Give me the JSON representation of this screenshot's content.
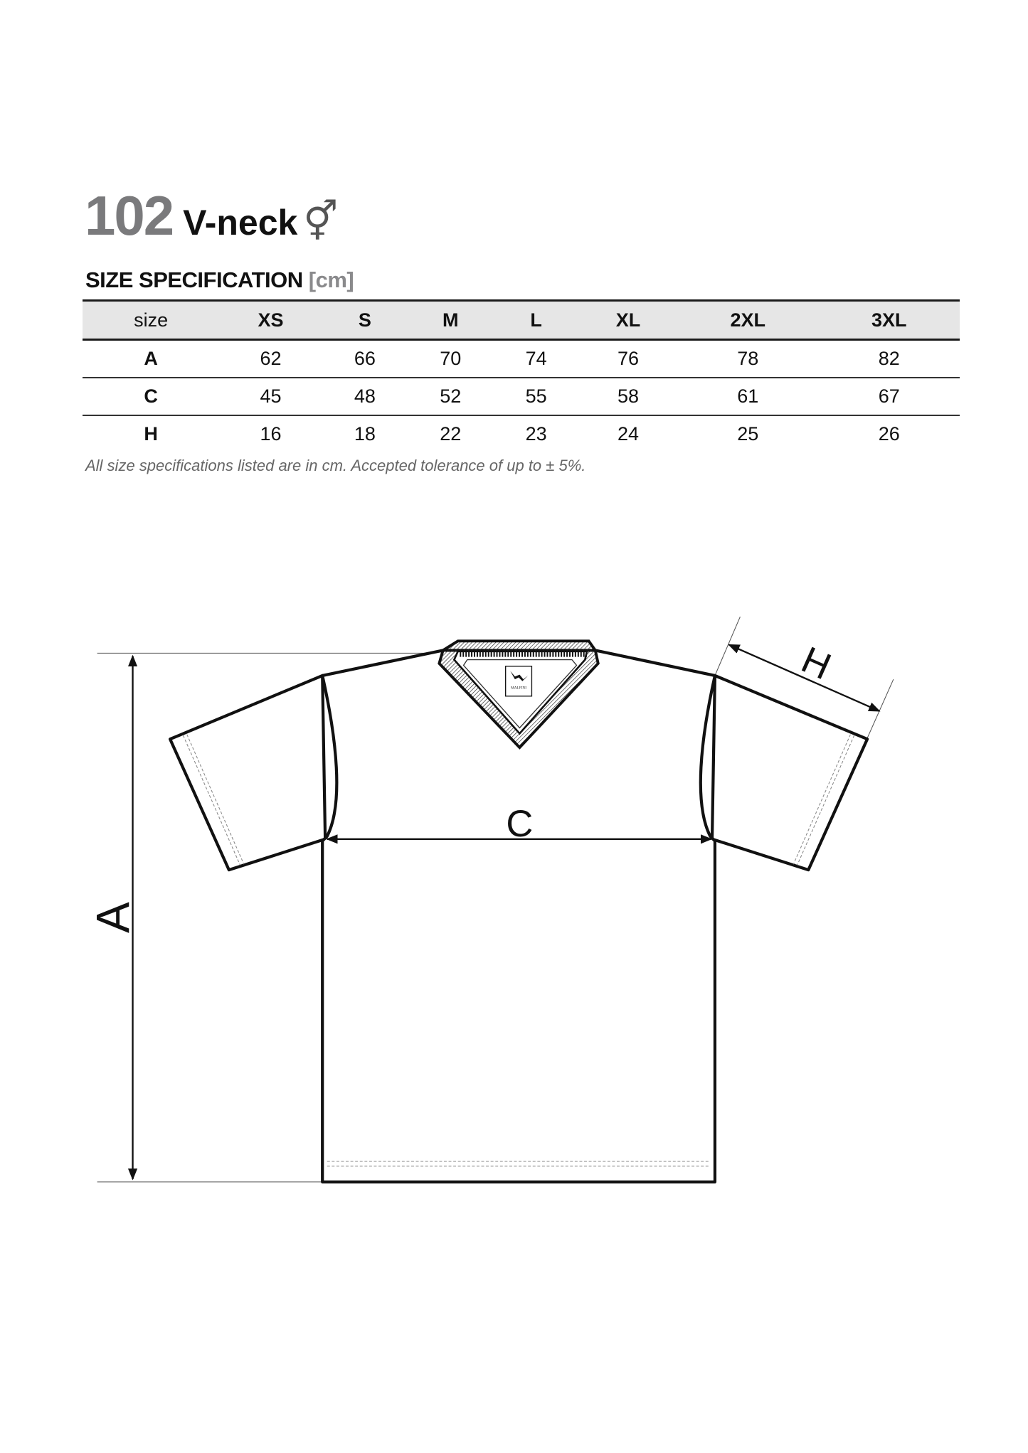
{
  "title": {
    "number": "102",
    "name": "V-neck",
    "gender_symbol": "⚥"
  },
  "section": {
    "heading": "SIZE SPECIFICATION",
    "unit": "[cm]"
  },
  "table": {
    "headers": [
      "size",
      "XS",
      "S",
      "M",
      "L",
      "XL",
      "2XL",
      "3XL"
    ],
    "rows": [
      {
        "label": "A",
        "values": [
          "62",
          "66",
          "70",
          "74",
          "76",
          "78",
          "82"
        ]
      },
      {
        "label": "C",
        "values": [
          "45",
          "48",
          "52",
          "55",
          "58",
          "61",
          "67"
        ]
      },
      {
        "label": "H",
        "values": [
          "16",
          "18",
          "22",
          "23",
          "24",
          "25",
          "26"
        ]
      }
    ]
  },
  "note": "All size specifications listed are in cm. Accepted tolerance of up to ± 5%.",
  "diagram": {
    "labels": {
      "a": "A",
      "c": "C",
      "h": "H"
    },
    "tag_logo_text": "MALFINI"
  }
}
